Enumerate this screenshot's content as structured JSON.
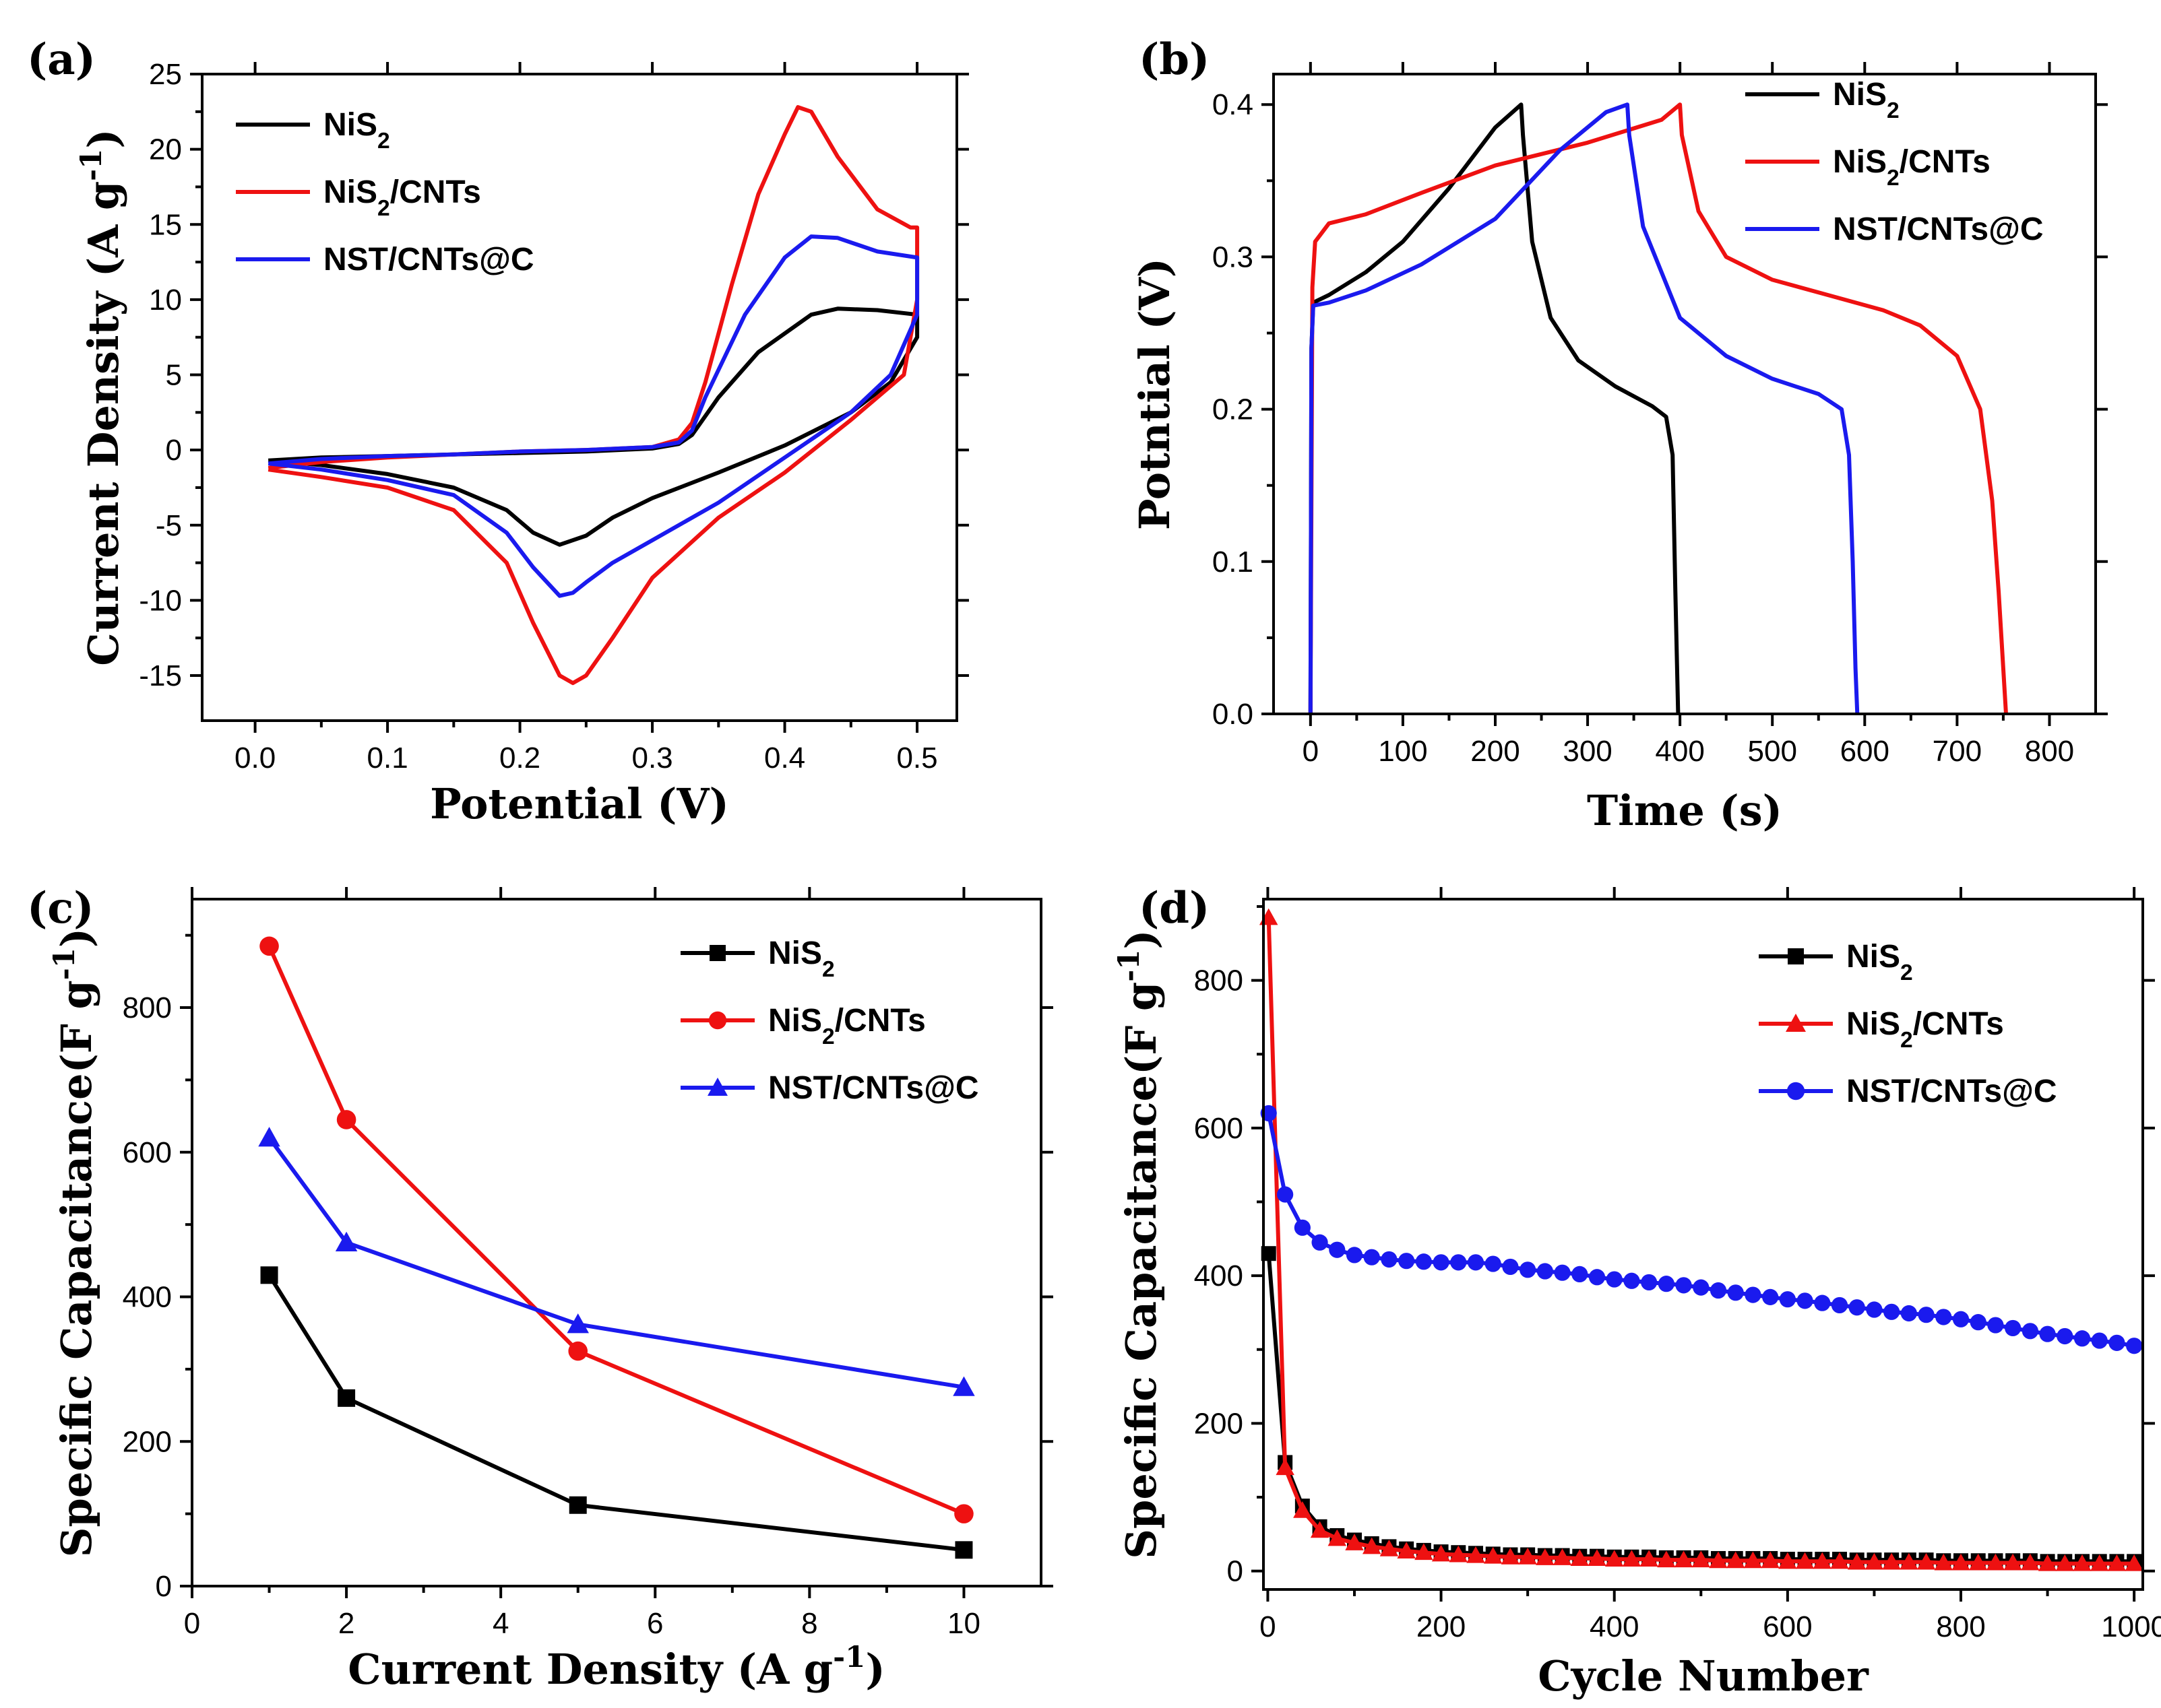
{
  "chart_data": [
    {
      "id": "a",
      "panel_label": "(a)",
      "type": "line",
      "xlabel": "Potential (V)",
      "ylabel": "Current Density (A g",
      "ylabel_sup": "-1",
      "ylabel_tail": ")",
      "xlim": [
        -0.04,
        0.53
      ],
      "ylim": [
        -18,
        25
      ],
      "xticks": [
        0.0,
        0.1,
        0.2,
        0.3,
        0.4,
        0.5
      ],
      "xtick_labels": [
        "0.0",
        "0.1",
        "0.2",
        "0.3",
        "0.4",
        "0.5"
      ],
      "yticks": [
        -15,
        -10,
        -5,
        0,
        5,
        10,
        15,
        20,
        25
      ],
      "ytick_labels": [
        "-15",
        "-10",
        "-5",
        "0",
        "5",
        "10",
        "15",
        "20",
        "25"
      ],
      "legend_position": "top-left",
      "series": [
        {
          "name": "NiS2",
          "label_main": "NiS",
          "label_sub": "2",
          "label_tail": "",
          "color": "#000000",
          "marker": "none",
          "x": [
            0.01,
            0.05,
            0.1,
            0.15,
            0.2,
            0.25,
            0.3,
            0.32,
            0.33,
            0.35,
            0.38,
            0.42,
            0.44,
            0.47,
            0.5,
            0.5,
            0.48,
            0.45,
            0.4,
            0.35,
            0.3,
            0.27,
            0.25,
            0.23,
            0.21,
            0.19,
            0.15,
            0.1,
            0.05,
            0.01
          ],
          "y": [
            -0.7,
            -0.5,
            -0.4,
            -0.3,
            -0.2,
            -0.1,
            0.1,
            0.4,
            1,
            3.5,
            6.5,
            9,
            9.4,
            9.3,
            9,
            7.5,
            4.5,
            2.5,
            0.3,
            -1.5,
            -3.2,
            -4.5,
            -5.7,
            -6.3,
            -5.5,
            -4,
            -2.5,
            -1.6,
            -1,
            -0.7
          ]
        },
        {
          "name": "NiS2/CNTs",
          "label_main": "NiS",
          "label_sub": "2",
          "label_tail": "/CNTs",
          "color": "#ee1111",
          "marker": "none",
          "x": [
            0.01,
            0.05,
            0.1,
            0.15,
            0.2,
            0.25,
            0.3,
            0.32,
            0.33,
            0.34,
            0.36,
            0.38,
            0.4,
            0.41,
            0.42,
            0.44,
            0.47,
            0.495,
            0.5,
            0.5,
            0.49,
            0.45,
            0.4,
            0.35,
            0.3,
            0.27,
            0.25,
            0.24,
            0.23,
            0.21,
            0.19,
            0.15,
            0.1,
            0.05,
            0.01
          ],
          "y": [
            -1.2,
            -0.8,
            -0.5,
            -0.3,
            -0.1,
            0,
            0.2,
            0.7,
            1.8,
            4.5,
            11,
            17,
            21,
            22.8,
            22.5,
            19.5,
            16,
            14.8,
            14.8,
            10,
            5,
            2,
            -1.5,
            -4.5,
            -8.5,
            -12.5,
            -15,
            -15.5,
            -15,
            -11.5,
            -7.5,
            -4,
            -2.5,
            -1.8,
            -1.3
          ]
        },
        {
          "name": "NST/CNTs@C",
          "label_main": "NST/CNTs@C",
          "label_sub": "",
          "label_tail": "",
          "color": "#1a1aee",
          "marker": "none",
          "x": [
            0.01,
            0.05,
            0.1,
            0.15,
            0.2,
            0.25,
            0.3,
            0.32,
            0.33,
            0.34,
            0.37,
            0.4,
            0.42,
            0.44,
            0.47,
            0.5,
            0.5,
            0.48,
            0.45,
            0.4,
            0.35,
            0.3,
            0.27,
            0.25,
            0.24,
            0.23,
            0.21,
            0.19,
            0.15,
            0.1,
            0.05,
            0.01
          ],
          "y": [
            -0.9,
            -0.6,
            -0.4,
            -0.3,
            -0.1,
            0,
            0.2,
            0.5,
            1.3,
            3.5,
            9,
            12.8,
            14.2,
            14.1,
            13.2,
            12.8,
            9,
            5,
            2.5,
            -0.5,
            -3.5,
            -6,
            -7.5,
            -8.8,
            -9.5,
            -9.7,
            -7.8,
            -5.5,
            -3,
            -2,
            -1.3,
            -0.9
          ]
        }
      ]
    },
    {
      "id": "b",
      "panel_label": "(b)",
      "type": "line",
      "xlabel": "Time (s)",
      "ylabel": "Potntial (V)",
      "xlim": [
        -40,
        850
      ],
      "ylim": [
        0,
        0.42
      ],
      "xticks": [
        0,
        100,
        200,
        300,
        400,
        500,
        600,
        700,
        800
      ],
      "xtick_labels": [
        "0",
        "100",
        "200",
        "300",
        "400",
        "500",
        "600",
        "700",
        "800"
      ],
      "yticks": [
        0.0,
        0.1,
        0.2,
        0.3,
        0.4
      ],
      "ytick_labels": [
        "0.0",
        "0.1",
        "0.2",
        "0.3",
        "0.4"
      ],
      "legend_position": "top-right",
      "series": [
        {
          "name": "NiS2",
          "label_main": "NiS",
          "label_sub": "2",
          "label_tail": "",
          "color": "#000000",
          "marker": "none",
          "x": [
            0,
            1,
            3,
            20,
            60,
            100,
            150,
            200,
            228,
            230,
            240,
            260,
            290,
            330,
            370,
            385,
            392,
            395,
            398
          ],
          "y": [
            0,
            0.24,
            0.27,
            0.275,
            0.29,
            0.31,
            0.345,
            0.385,
            0.4,
            0.38,
            0.31,
            0.26,
            0.232,
            0.215,
            0.202,
            0.195,
            0.17,
            0.08,
            0
          ]
        },
        {
          "name": "NiS2/CNTs",
          "label_main": "NiS",
          "label_sub": "2",
          "label_tail": "/CNTs",
          "color": "#ee1111",
          "marker": "none",
          "x": [
            0,
            2,
            5,
            20,
            60,
            120,
            200,
            300,
            380,
            400,
            402,
            420,
            450,
            500,
            560,
            620,
            660,
            700,
            725,
            738,
            745,
            750,
            753
          ],
          "y": [
            0,
            0.28,
            0.31,
            0.322,
            0.328,
            0.342,
            0.36,
            0.375,
            0.39,
            0.4,
            0.38,
            0.33,
            0.3,
            0.285,
            0.275,
            0.265,
            0.255,
            0.235,
            0.2,
            0.14,
            0.08,
            0.03,
            0
          ]
        },
        {
          "name": "NST/CNTs@C",
          "label_main": "NST/CNTs@C",
          "label_sub": "",
          "label_tail": "",
          "color": "#1a1aee",
          "marker": "none",
          "x": [
            0,
            1,
            3,
            20,
            60,
            120,
            200,
            270,
            320,
            343,
            345,
            360,
            400,
            450,
            500,
            550,
            575,
            583,
            587,
            590,
            592
          ],
          "y": [
            0,
            0.24,
            0.268,
            0.27,
            0.278,
            0.295,
            0.325,
            0.37,
            0.395,
            0.4,
            0.38,
            0.32,
            0.26,
            0.235,
            0.22,
            0.21,
            0.2,
            0.17,
            0.1,
            0.03,
            0
          ]
        }
      ]
    },
    {
      "id": "c",
      "panel_label": "(c)",
      "type": "line",
      "xlabel": "Current Density (A g",
      "xlabel_sup": "-1",
      "xlabel_tail": ")",
      "ylabel": "Specific Capacitance(F g",
      "ylabel_sup": "-1",
      "ylabel_tail": ")",
      "xlim": [
        0,
        11
      ],
      "ylim": [
        0,
        950
      ],
      "xticks": [
        0,
        2,
        4,
        6,
        8,
        10
      ],
      "xtick_labels": [
        "0",
        "2",
        "4",
        "6",
        "8",
        "10"
      ],
      "yticks": [
        0,
        200,
        400,
        600,
        800
      ],
      "ytick_labels": [
        "0",
        "200",
        "400",
        "600",
        "800"
      ],
      "legend_position": "top-right",
      "series": [
        {
          "name": "NiS2",
          "label_main": "NiS",
          "label_sub": "2",
          "label_tail": "",
          "color": "#000000",
          "marker": "square",
          "x": [
            1,
            2,
            5,
            10
          ],
          "y": [
            430,
            260,
            112,
            50
          ]
        },
        {
          "name": "NiS2/CNTs",
          "label_main": "NiS",
          "label_sub": "2",
          "label_tail": "/CNTs",
          "color": "#ee1111",
          "marker": "circle",
          "x": [
            1,
            2,
            5,
            10
          ],
          "y": [
            885,
            645,
            325,
            100
          ]
        },
        {
          "name": "NST/CNTs@C",
          "label_main": "NST/CNTs@C",
          "label_sub": "",
          "label_tail": "",
          "color": "#1a1aee",
          "marker": "triangle",
          "x": [
            1,
            2,
            5,
            10
          ],
          "y": [
            620,
            475,
            362,
            275
          ]
        }
      ]
    },
    {
      "id": "d",
      "panel_label": "(d)",
      "type": "line",
      "xlabel": "Cycle Number",
      "ylabel": "Specific Capacitance(F g",
      "ylabel_sup": "-1",
      "ylabel_tail": ")",
      "xlim": [
        -5,
        1010
      ],
      "ylim": [
        -25,
        910
      ],
      "xticks": [
        0,
        200,
        400,
        600,
        800,
        1000
      ],
      "xtick_labels": [
        "0",
        "200",
        "400",
        "600",
        "800",
        "1000"
      ],
      "yticks": [
        0,
        200,
        400,
        600,
        800
      ],
      "ytick_labels": [
        "0",
        "200",
        "400",
        "600",
        "800"
      ],
      "legend_position": "top-right",
      "series": [
        {
          "name": "NiS2",
          "label_main": "NiS",
          "label_sub": "2",
          "label_tail": "",
          "color": "#000000",
          "marker": "square",
          "x": [
            1,
            20,
            40,
            60,
            80,
            100,
            120,
            140,
            160,
            180,
            200,
            220,
            240,
            260,
            280,
            300,
            320,
            340,
            360,
            380,
            400,
            420,
            440,
            460,
            480,
            500,
            520,
            540,
            560,
            580,
            600,
            620,
            640,
            660,
            680,
            700,
            720,
            740,
            760,
            780,
            800,
            820,
            840,
            860,
            880,
            900,
            920,
            940,
            960,
            980,
            1000
          ],
          "y": [
            430,
            147,
            88,
            60,
            48,
            42,
            37,
            33,
            30,
            28,
            26,
            25,
            24,
            23,
            22,
            22,
            21,
            21,
            20,
            20,
            19,
            19,
            19,
            18,
            18,
            18,
            17,
            17,
            17,
            17,
            16,
            16,
            16,
            16,
            15,
            15,
            15,
            15,
            15,
            14,
            14,
            14,
            14,
            14,
            14,
            13,
            13,
            13,
            13,
            13,
            13
          ]
        },
        {
          "name": "NiS2/CNTs",
          "label_main": "NiS",
          "label_sub": "2",
          "label_tail": "/CNTs",
          "color": "#ee1111",
          "marker": "triangle",
          "x": [
            1,
            20,
            40,
            60,
            80,
            100,
            120,
            140,
            160,
            180,
            200,
            220,
            240,
            260,
            280,
            300,
            320,
            340,
            360,
            380,
            400,
            420,
            440,
            460,
            480,
            500,
            520,
            540,
            560,
            580,
            600,
            620,
            640,
            660,
            680,
            700,
            720,
            740,
            760,
            780,
            800,
            820,
            840,
            860,
            880,
            900,
            920,
            940,
            960,
            980,
            1000
          ],
          "y": [
            885,
            140,
            82,
            55,
            44,
            38,
            33,
            30,
            27,
            25,
            23,
            22,
            21,
            20,
            19,
            19,
            18,
            18,
            17,
            17,
            16,
            16,
            16,
            15,
            15,
            15,
            14,
            14,
            14,
            14,
            13,
            13,
            13,
            13,
            12,
            12,
            12,
            12,
            12,
            11,
            11,
            11,
            11,
            11,
            11,
            10,
            10,
            10,
            10,
            10,
            10
          ]
        },
        {
          "name": "NST/CNTs@C",
          "label_main": "NST/CNTs@C",
          "label_sub": "",
          "label_tail": "",
          "color": "#1a1aee",
          "marker": "circle",
          "x": [
            1,
            20,
            40,
            60,
            80,
            100,
            120,
            140,
            160,
            180,
            200,
            220,
            240,
            260,
            280,
            300,
            320,
            340,
            360,
            380,
            400,
            420,
            440,
            460,
            480,
            500,
            520,
            540,
            560,
            580,
            600,
            620,
            640,
            660,
            680,
            700,
            720,
            740,
            760,
            780,
            800,
            820,
            840,
            860,
            880,
            900,
            920,
            940,
            960,
            980,
            1000
          ],
          "y": [
            620,
            510,
            465,
            445,
            435,
            428,
            425,
            422,
            420,
            419,
            418,
            418,
            418,
            416,
            412,
            408,
            406,
            404,
            402,
            398,
            395,
            393,
            391,
            389,
            387,
            384,
            380,
            377,
            374,
            371,
            368,
            366,
            363,
            360,
            357,
            354,
            351,
            349,
            347,
            344,
            341,
            337,
            333,
            329,
            325,
            321,
            318,
            315,
            312,
            309,
            305
          ]
        }
      ]
    }
  ]
}
